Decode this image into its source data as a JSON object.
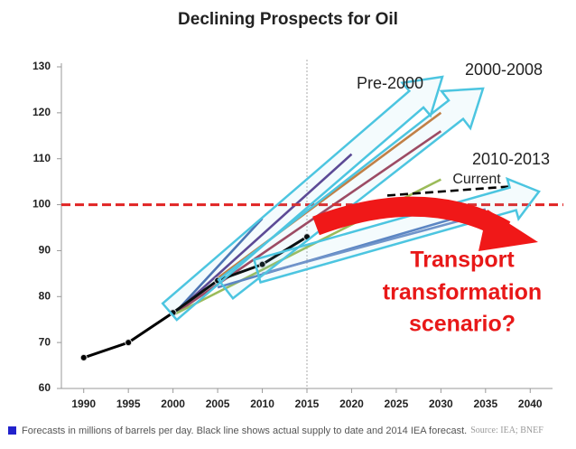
{
  "chart_data": {
    "type": "line",
    "title": "Declining Prospects for Oil",
    "xlim": [
      1987.5,
      2042.5
    ],
    "xticks": [
      1990,
      1995,
      2000,
      2005,
      2010,
      2015,
      2020,
      2025,
      2030,
      2035,
      2040
    ],
    "ylim": [
      60,
      130
    ],
    "yticks": [
      60,
      70,
      80,
      90,
      100,
      110,
      120,
      130
    ],
    "reference_line": {
      "value": 100,
      "color": "#e02424"
    },
    "divider_x": 2015,
    "series": [
      {
        "color": "#5b3f8f",
        "x": [
          2000,
          2020
        ],
        "values": [
          76,
          111
        ]
      },
      {
        "color": "#c87a3a",
        "x": [
          2005,
          2030
        ],
        "values": [
          84,
          120
        ]
      },
      {
        "color": "#a0405a",
        "x": [
          2000,
          2030
        ],
        "values": [
          76,
          116
        ]
      },
      {
        "color": "#4a6fb0",
        "x": [
          2000,
          2010
        ],
        "values": [
          76,
          97
        ]
      },
      {
        "color": "#9bbb59",
        "x": [
          2000,
          2030
        ],
        "values": [
          76,
          105.5
        ]
      },
      {
        "color": "#5b80c0",
        "x": [
          2005,
          2035
        ],
        "values": [
          82,
          99
        ]
      },
      {
        "color": "#7090c8",
        "x": [
          2010,
          2035
        ],
        "values": [
          85,
          98
        ]
      },
      {
        "color": "#000000",
        "x": [
          2024,
          2038
        ],
        "values": [
          102,
          104
        ],
        "dashed": true
      },
      {
        "color": "#000000",
        "x": [
          1990,
          1995,
          2000,
          2005,
          2010,
          2015
        ],
        "values": [
          66.7,
          70,
          76.5,
          83.5,
          87,
          93
        ],
        "markers": true
      }
    ],
    "annotations": [
      "Pre-2000",
      "2000-2008",
      "2010-2013",
      "Current",
      "Transport",
      "transformation",
      "scenario?"
    ],
    "footnote": "Forecasts in millions of barrels per day. Black line shows actual supply to date and 2014 IEA forecast.",
    "source": "Source: IEA; BNEF"
  }
}
